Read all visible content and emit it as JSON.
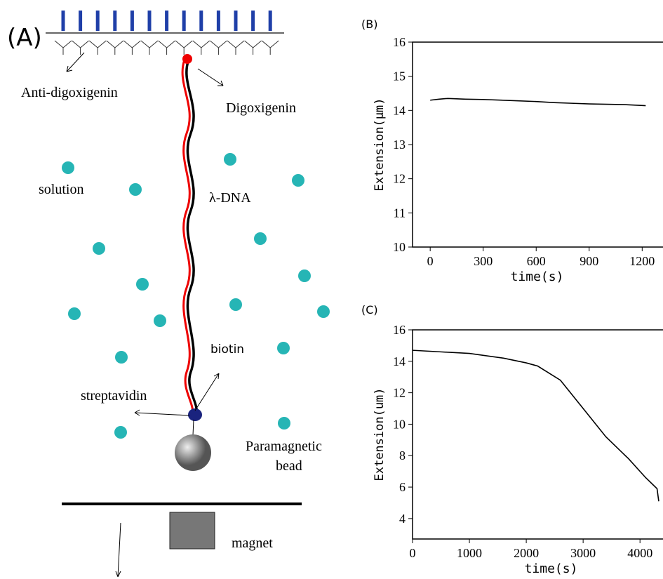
{
  "diagram": {
    "panel": "(A)",
    "labels": {
      "anti_digoxigenin": "Anti-digoxigenin",
      "digoxigenin": "Digoxigenin",
      "solution": "solution",
      "dna": "λ-DNA",
      "biotin": "biotin",
      "streptavidin": "streptavidin",
      "bead_1": "Paramagnetic",
      "bead_2": "bead",
      "magnet": "magnet"
    }
  },
  "chart_data": [
    {
      "type": "line",
      "panel": "(B)",
      "x_label": "time(s)",
      "y_label": "Extension(μm)",
      "x": [
        0,
        50,
        100,
        200,
        300,
        400,
        500,
        600,
        700,
        800,
        900,
        1000,
        1100,
        1220
      ],
      "series": [
        {
          "color": "#000000",
          "values": [
            14.3,
            14.33,
            14.35,
            14.33,
            14.32,
            14.3,
            14.28,
            14.26,
            14.23,
            14.21,
            14.19,
            14.18,
            14.17,
            14.14
          ]
        }
      ],
      "xlim": [
        -100,
        1310
      ],
      "ylim": [
        10,
        16
      ],
      "xticks": [
        0,
        300,
        600,
        900,
        1200
      ],
      "yticks": [
        10,
        11,
        12,
        13,
        14,
        15,
        16
      ]
    },
    {
      "type": "line",
      "panel": "(C)",
      "x_label": "time(s)",
      "y_label": "Extension(um)",
      "x": [
        0,
        500,
        1000,
        1600,
        2000,
        2200,
        2600,
        3000,
        3400,
        3800,
        4100,
        4300,
        4330
      ],
      "series": [
        {
          "color": "#000000",
          "values": [
            14.7,
            14.6,
            14.5,
            14.2,
            13.9,
            13.7,
            12.8,
            11,
            9.2,
            7.8,
            6.6,
            5.9,
            5.1
          ]
        }
      ],
      "xlim": [
        0,
        4380
      ],
      "ylim": [
        2.7,
        16
      ],
      "xticks": [
        0,
        1000,
        2000,
        3000,
        4000
      ],
      "yticks": [
        4,
        6,
        8,
        10,
        12,
        14,
        16
      ]
    }
  ]
}
